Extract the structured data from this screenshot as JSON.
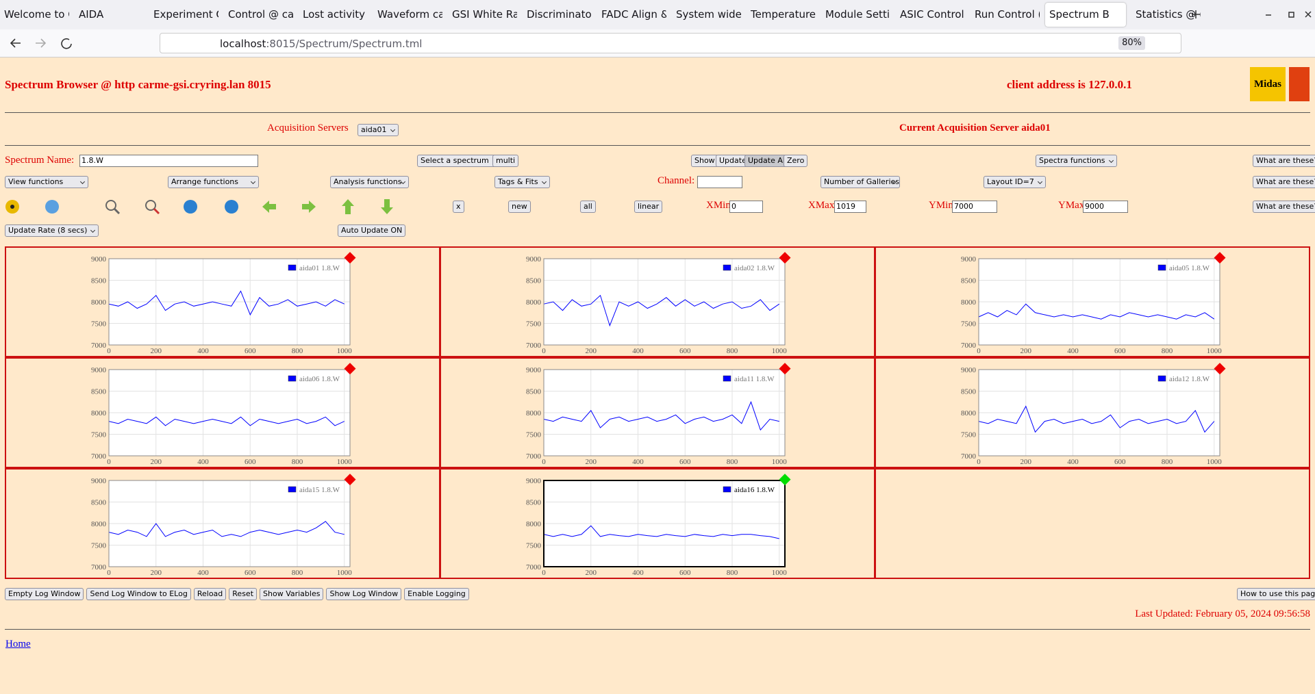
{
  "browser": {
    "tabs": [
      "Welcome to C",
      "AIDA",
      "Experiment C",
      "Control @ ca",
      "Lost activity r",
      "Waveform ca",
      "GSI White Ra",
      "Discriminator",
      "FADC Align &",
      "System wide",
      "Temperature",
      "Module Settir",
      "ASIC Control",
      "Run Control (",
      "Spectrum B",
      "Statistics @ ("
    ],
    "url_host": "localhost",
    "url_rest": ":8015/Spectrum/Spectrum.tml",
    "zoom": "80%"
  },
  "header": {
    "title": "Spectrum Browser @ http carme-gsi.cryring.lan 8015",
    "client": "client address is 127.0.0.1",
    "logo": "Midas"
  },
  "acquisition": {
    "label": "Acquisition Servers",
    "server": "aida01",
    "current": "Current Acquisition Server aida01"
  },
  "controls": {
    "spectrum_name_label": "Spectrum Name:",
    "spectrum_name": "1.8.W",
    "select_spectrum": "Select a spectrum",
    "multi": "multi",
    "show": "Show",
    "update": "Update",
    "update_all": "Update All",
    "zero": "Zero",
    "spectra_functions": "Spectra functions",
    "help": "What are these?",
    "view_functions": "View functions",
    "arrange_functions": "Arrange functions",
    "analysis_functions": "Analysis functions",
    "tags_fits": "Tags & Fits",
    "channel_label": "Channel:",
    "galleries": "Number of Galleries",
    "layout": "Layout ID=7",
    "x": "x",
    "new": "new",
    "all": "all",
    "linear": "linear",
    "xmin_label": "XMin",
    "xmin": "0",
    "xmax_label": "XMax",
    "xmax": "1019",
    "ymin_label": "YMin",
    "ymin": "7000",
    "ymax_label": "YMax",
    "ymax": "9000",
    "update_rate": "Update Rate (8 secs)",
    "auto_update": "Auto Update ON"
  },
  "chart_data": [
    {
      "type": "line",
      "x": [
        0,
        40,
        80,
        120,
        160,
        200,
        240,
        280,
        320,
        360,
        400,
        440,
        480,
        520,
        560,
        600,
        640,
        680,
        720,
        760,
        800,
        840,
        880,
        920,
        960,
        1000
      ],
      "xlim": [
        0,
        1024
      ],
      "ylim": [
        7000,
        9000
      ],
      "xticks": [
        0,
        200,
        400,
        600,
        800,
        1000
      ],
      "yticks": [
        7000,
        7500,
        8000,
        8500,
        9000
      ],
      "grid": true,
      "marker_color": "#ee0000",
      "frame_color": "#888888",
      "series": [
        {
          "name": "aida01 1.8.W",
          "color": "#0000ff",
          "values": [
            7950,
            7900,
            8000,
            7850,
            7950,
            8150,
            7800,
            7950,
            8000,
            7900,
            7950,
            8000,
            7950,
            7900,
            8250,
            7700,
            8100,
            7900,
            7950,
            8050,
            7900,
            7950,
            8000,
            7900,
            8050,
            7950
          ]
        }
      ]
    },
    {
      "type": "line",
      "x": [
        0,
        40,
        80,
        120,
        160,
        200,
        240,
        280,
        320,
        360,
        400,
        440,
        480,
        520,
        560,
        600,
        640,
        680,
        720,
        760,
        800,
        840,
        880,
        920,
        960,
        1000
      ],
      "xlim": [
        0,
        1024
      ],
      "ylim": [
        7000,
        9000
      ],
      "xticks": [
        0,
        200,
        400,
        600,
        800,
        1000
      ],
      "yticks": [
        7000,
        7500,
        8000,
        8500,
        9000
      ],
      "grid": true,
      "marker_color": "#ee0000",
      "frame_color": "#888888",
      "series": [
        {
          "name": "aida02 1.8.W",
          "color": "#0000ff",
          "values": [
            7950,
            8000,
            7800,
            8050,
            7900,
            7950,
            8150,
            7450,
            8000,
            7900,
            8000,
            7850,
            7950,
            8100,
            7900,
            8050,
            7900,
            8000,
            7850,
            7950,
            8000,
            7850,
            7900,
            8050,
            7800,
            7950
          ]
        }
      ]
    },
    {
      "type": "line",
      "x": [
        0,
        40,
        80,
        120,
        160,
        200,
        240,
        280,
        320,
        360,
        400,
        440,
        480,
        520,
        560,
        600,
        640,
        680,
        720,
        760,
        800,
        840,
        880,
        920,
        960,
        1000
      ],
      "xlim": [
        0,
        1024
      ],
      "ylim": [
        7000,
        9000
      ],
      "xticks": [
        0,
        200,
        400,
        600,
        800,
        1000
      ],
      "yticks": [
        7000,
        7500,
        8000,
        8500,
        9000
      ],
      "grid": true,
      "marker_color": "#ee0000",
      "frame_color": "#888888",
      "series": [
        {
          "name": "aida05 1.8.W",
          "color": "#0000ff",
          "values": [
            7650,
            7750,
            7650,
            7800,
            7700,
            7950,
            7750,
            7700,
            7650,
            7700,
            7650,
            7700,
            7650,
            7600,
            7700,
            7650,
            7750,
            7700,
            7650,
            7700,
            7650,
            7600,
            7700,
            7650,
            7750,
            7600
          ]
        }
      ]
    },
    {
      "type": "line",
      "x": [
        0,
        40,
        80,
        120,
        160,
        200,
        240,
        280,
        320,
        360,
        400,
        440,
        480,
        520,
        560,
        600,
        640,
        680,
        720,
        760,
        800,
        840,
        880,
        920,
        960,
        1000
      ],
      "xlim": [
        0,
        1024
      ],
      "ylim": [
        7000,
        9000
      ],
      "xticks": [
        0,
        200,
        400,
        600,
        800,
        1000
      ],
      "yticks": [
        7000,
        7500,
        8000,
        8500,
        9000
      ],
      "grid": true,
      "marker_color": "#ee0000",
      "frame_color": "#888888",
      "series": [
        {
          "name": "aida06 1.8.W",
          "color": "#0000ff",
          "values": [
            7800,
            7750,
            7850,
            7800,
            7750,
            7900,
            7700,
            7850,
            7800,
            7750,
            7800,
            7850,
            7800,
            7750,
            7900,
            7700,
            7850,
            7800,
            7750,
            7800,
            7850,
            7750,
            7800,
            7900,
            7700,
            7800
          ]
        }
      ]
    },
    {
      "type": "line",
      "x": [
        0,
        40,
        80,
        120,
        160,
        200,
        240,
        280,
        320,
        360,
        400,
        440,
        480,
        520,
        560,
        600,
        640,
        680,
        720,
        760,
        800,
        840,
        880,
        920,
        960,
        1000
      ],
      "xlim": [
        0,
        1024
      ],
      "ylim": [
        7000,
        9000
      ],
      "xticks": [
        0,
        200,
        400,
        600,
        800,
        1000
      ],
      "yticks": [
        7000,
        7500,
        8000,
        8500,
        9000
      ],
      "grid": true,
      "marker_color": "#ee0000",
      "frame_color": "#888888",
      "series": [
        {
          "name": "aida11 1.8.W",
          "color": "#0000ff",
          "values": [
            7850,
            7800,
            7900,
            7850,
            7800,
            8050,
            7650,
            7850,
            7900,
            7800,
            7850,
            7900,
            7800,
            7850,
            7950,
            7750,
            7850,
            7900,
            7800,
            7850,
            7950,
            7750,
            8250,
            7600,
            7850,
            7800
          ]
        }
      ]
    },
    {
      "type": "line",
      "x": [
        0,
        40,
        80,
        120,
        160,
        200,
        240,
        280,
        320,
        360,
        400,
        440,
        480,
        520,
        560,
        600,
        640,
        680,
        720,
        760,
        800,
        840,
        880,
        920,
        960,
        1000
      ],
      "xlim": [
        0,
        1024
      ],
      "ylim": [
        7000,
        9000
      ],
      "xticks": [
        0,
        200,
        400,
        600,
        800,
        1000
      ],
      "yticks": [
        7000,
        7500,
        8000,
        8500,
        9000
      ],
      "grid": true,
      "marker_color": "#ee0000",
      "frame_color": "#888888",
      "series": [
        {
          "name": "aida12 1.8.W",
          "color": "#0000ff",
          "values": [
            7800,
            7750,
            7850,
            7800,
            7750,
            8150,
            7550,
            7800,
            7850,
            7750,
            7800,
            7850,
            7750,
            7800,
            7950,
            7650,
            7800,
            7850,
            7750,
            7800,
            7850,
            7750,
            7800,
            8050,
            7550,
            7800
          ]
        }
      ]
    },
    {
      "type": "line",
      "x": [
        0,
        40,
        80,
        120,
        160,
        200,
        240,
        280,
        320,
        360,
        400,
        440,
        480,
        520,
        560,
        600,
        640,
        680,
        720,
        760,
        800,
        840,
        880,
        920,
        960,
        1000
      ],
      "xlim": [
        0,
        1024
      ],
      "ylim": [
        7000,
        9000
      ],
      "xticks": [
        0,
        200,
        400,
        600,
        800,
        1000
      ],
      "yticks": [
        7000,
        7500,
        8000,
        8500,
        9000
      ],
      "grid": true,
      "marker_color": "#ee0000",
      "frame_color": "#888888",
      "series": [
        {
          "name": "aida15 1.8.W",
          "color": "#0000ff",
          "values": [
            7800,
            7750,
            7850,
            7800,
            7700,
            8000,
            7700,
            7800,
            7850,
            7750,
            7800,
            7850,
            7700,
            7750,
            7700,
            7800,
            7850,
            7800,
            7750,
            7800,
            7850,
            7800,
            7900,
            8050,
            7800,
            7750
          ]
        }
      ]
    },
    {
      "type": "line",
      "x": [
        0,
        40,
        80,
        120,
        160,
        200,
        240,
        280,
        320,
        360,
        400,
        440,
        480,
        520,
        560,
        600,
        640,
        680,
        720,
        760,
        800,
        840,
        880,
        920,
        960,
        1000
      ],
      "xlim": [
        0,
        1024
      ],
      "ylim": [
        7000,
        9000
      ],
      "xticks": [
        0,
        200,
        400,
        600,
        800,
        1000
      ],
      "yticks": [
        7000,
        7500,
        8000,
        8500,
        9000
      ],
      "grid": true,
      "marker_color": "#00dd00",
      "frame_color": "#000000",
      "series": [
        {
          "name": "aida16 1.8.W",
          "color": "#0000ff",
          "values": [
            7750,
            7700,
            7750,
            7700,
            7750,
            7950,
            7700,
            7750,
            7720,
            7700,
            7750,
            7720,
            7700,
            7750,
            7720,
            7700,
            7750,
            7720,
            7700,
            7750,
            7720,
            7750,
            7750,
            7720,
            7700,
            7650
          ]
        }
      ]
    }
  ],
  "footer": {
    "buttons": [
      "Empty Log Window",
      "Send Log Window to ELog",
      "Reload",
      "Reset",
      "Show Variables",
      "Show Log Window",
      "Enable Logging"
    ],
    "how_to": "How to use this page",
    "last_updated": "Last Updated: February 05, 2024 09:56:58",
    "home": "Home"
  }
}
